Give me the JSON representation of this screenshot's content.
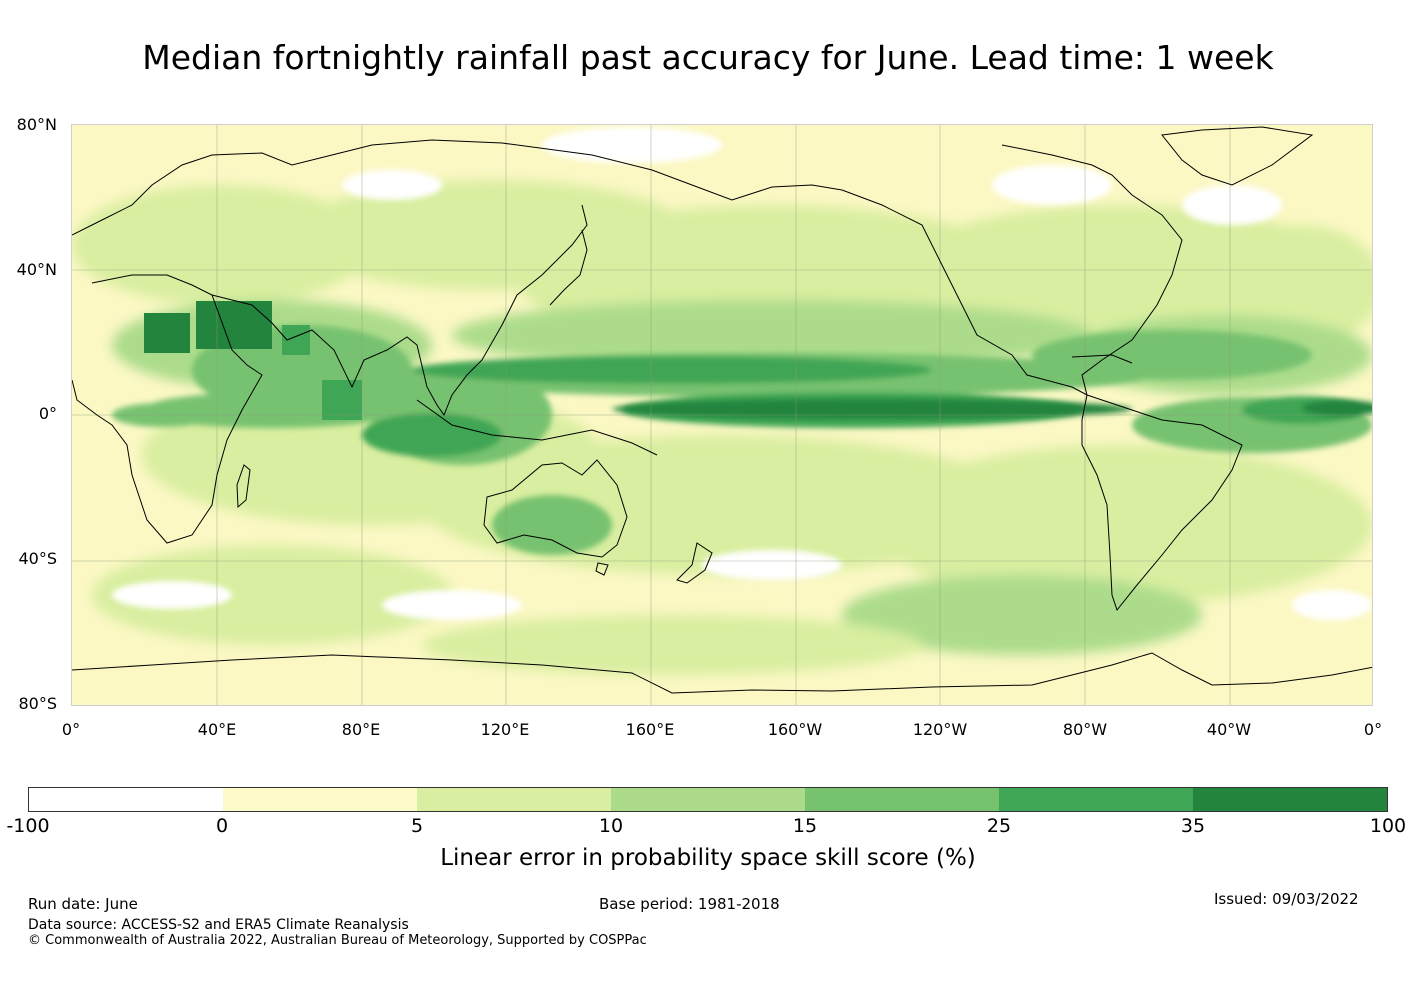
{
  "title": "Median fortnightly rainfall past accuracy for June. Lead time: 1 week",
  "map": {
    "lat_labels": [
      "80°N",
      "40°N",
      "0°",
      "40°S",
      "80°S"
    ],
    "lon_labels": [
      "0°",
      "40°E",
      "80°E",
      "120°E",
      "160°E",
      "160°W",
      "120°W",
      "80°W",
      "40°W",
      "0°"
    ],
    "description_regions": [
      {
        "name": "equatorial-pacific-band",
        "level": 35
      },
      {
        "name": "arabian-peninsula-high-skill",
        "level": 35
      },
      {
        "name": "indian-ocean-band",
        "level": 25
      },
      {
        "name": "maritime-continent",
        "level": 25
      }
    ]
  },
  "colorbar": {
    "ticks": [
      "-100",
      "0",
      "5",
      "10",
      "15",
      "25",
      "35",
      "100"
    ],
    "colors": [
      "#ffffff",
      "#fdfbc9",
      "#d9eea0",
      "#acdc8b",
      "#77c26f",
      "#3fa655",
      "#23843e"
    ],
    "label": "Linear error in probability space skill score (%)"
  },
  "footer": {
    "run_date": "Run date: June",
    "base_period": "Base period: 1981-2018",
    "issued": "Issued: 09/03/2022",
    "data_source": "Data source: ACCESS-S2 and ERA5 Climate Reanalysis",
    "copyright": "© Commonwealth of Australia 2022, Australian Bureau of Meteorology, Supported by COSPPac"
  }
}
